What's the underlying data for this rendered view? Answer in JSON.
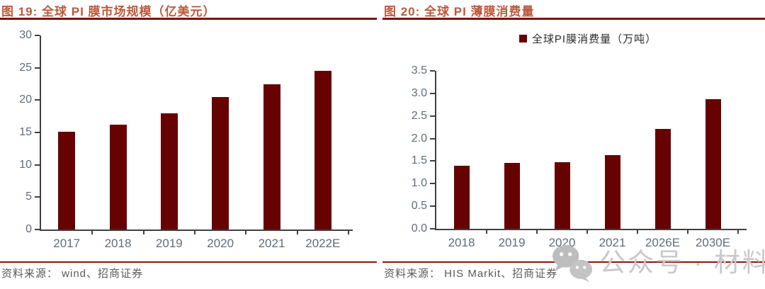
{
  "page": {
    "watermark": {
      "icon": "wechat-icon",
      "text": "公众号 · 材料圈",
      "color": "#c9c9c9"
    }
  },
  "colors": {
    "bar": "#660202",
    "title": "#bc5a3c",
    "title_rule": "#76150d",
    "source_rule": "#8d1410",
    "axis": "#404040",
    "tick_label": "#5f6d79",
    "source_text": "#5a5a5a"
  },
  "chart_data": [
    {
      "type": "bar",
      "figure_label": "图 19",
      "title": "图 19: 全球 PI 膜市场规模（亿美元）",
      "legend": null,
      "categories": [
        "2017",
        "2018",
        "2019",
        "2020",
        "2021",
        "2022E"
      ],
      "values": [
        15.1,
        16.2,
        18.0,
        20.5,
        22.5,
        24.5
      ],
      "xlabel": "",
      "ylabel": "",
      "ylim": [
        0,
        30
      ],
      "ytick_step": 5,
      "ytick_decimals": 0,
      "grid": false,
      "legend_position": "none",
      "bar_color": "#660202",
      "source": "资料来源： wind、招商证券"
    },
    {
      "type": "bar",
      "figure_label": "图 20",
      "title": "图 20: 全球 PI 薄膜消费量",
      "legend": "全球PI膜消费量（万吨）",
      "categories": [
        "2018",
        "2019",
        "2020",
        "2021",
        "2026E",
        "2030E"
      ],
      "values": [
        1.39,
        1.46,
        1.48,
        1.63,
        2.21,
        2.87
      ],
      "xlabel": "",
      "ylabel": "",
      "ylim": [
        0,
        3.5
      ],
      "ytick_step": 0.5,
      "ytick_decimals": 1,
      "grid": false,
      "legend_position": "top-center",
      "bar_color": "#660202",
      "source": "资料来源： HIS Markit、招商证券"
    }
  ]
}
